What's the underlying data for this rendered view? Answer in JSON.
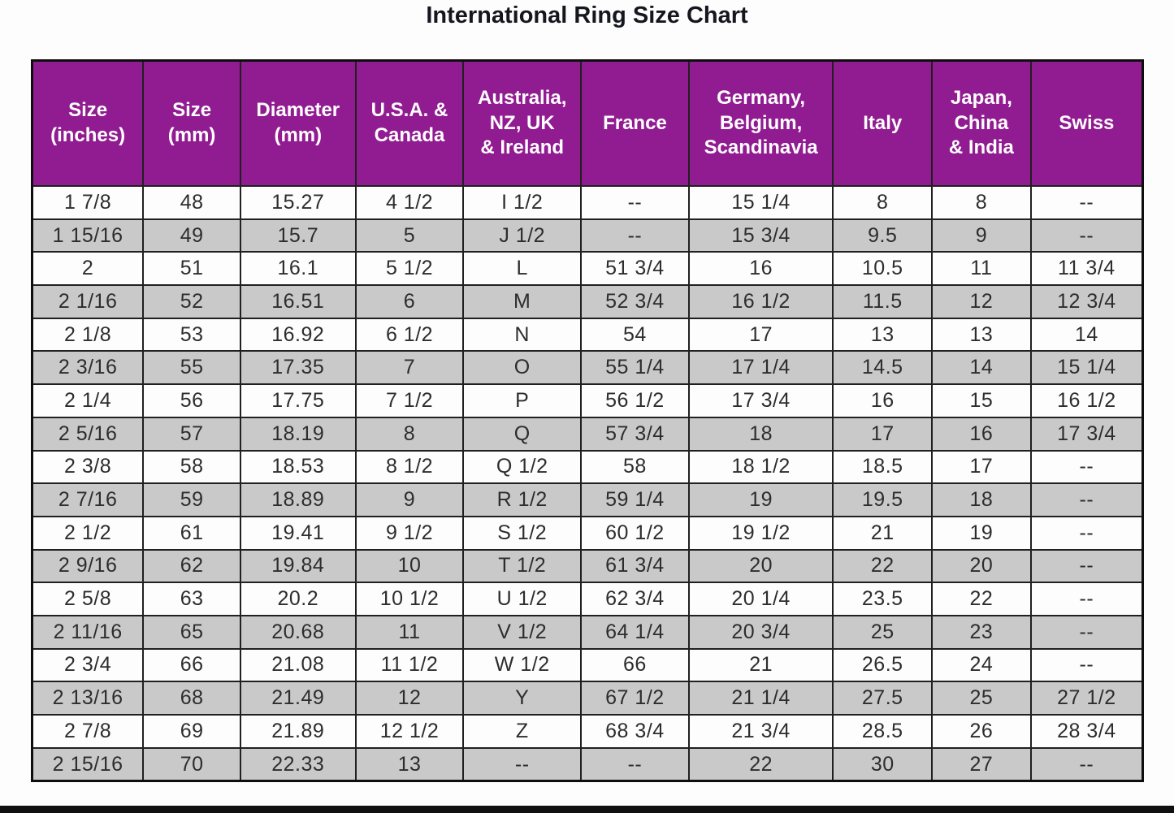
{
  "title": "International Ring Size Chart",
  "colors": {
    "header_bg": "#911b91",
    "header_text": "#ffffff",
    "row_bg": "#fdfdfd",
    "row_alt_bg": "#c9c9c9",
    "border": "#202020",
    "cell_text": "#2d2d2d",
    "bottom_bar": "#101010"
  },
  "chart_data": {
    "type": "table",
    "title": "International Ring Size Chart",
    "columns": [
      "Size\n(inches)",
      "Size\n(mm)",
      "Diameter\n(mm)",
      "U.S.A. &\nCanada",
      "Australia,\nNZ, UK\n& Ireland",
      "France",
      "Germany,\nBelgium,\nScandinavia",
      "Italy",
      "Japan,\nChina\n& India",
      "Swiss"
    ],
    "rows": [
      [
        "1 7/8",
        "48",
        "15.27",
        "4 1/2",
        "I 1/2",
        "--",
        "15 1/4",
        "8",
        "8",
        "--"
      ],
      [
        "1 15/16",
        "49",
        "15.7",
        "5",
        "J 1/2",
        "--",
        "15 3/4",
        "9.5",
        "9",
        "--"
      ],
      [
        "2",
        "51",
        "16.1",
        "5 1/2",
        "L",
        "51 3/4",
        "16",
        "10.5",
        "11",
        "11 3/4"
      ],
      [
        "2 1/16",
        "52",
        "16.51",
        "6",
        "M",
        "52 3/4",
        "16 1/2",
        "11.5",
        "12",
        "12 3/4"
      ],
      [
        "2 1/8",
        "53",
        "16.92",
        "6 1/2",
        "N",
        "54",
        "17",
        "13",
        "13",
        "14"
      ],
      [
        "2 3/16",
        "55",
        "17.35",
        "7",
        "O",
        "55 1/4",
        "17 1/4",
        "14.5",
        "14",
        "15 1/4"
      ],
      [
        "2 1/4",
        "56",
        "17.75",
        "7 1/2",
        "P",
        "56 1/2",
        "17 3/4",
        "16",
        "15",
        "16 1/2"
      ],
      [
        "2 5/16",
        "57",
        "18.19",
        "8",
        "Q",
        "57 3/4",
        "18",
        "17",
        "16",
        "17 3/4"
      ],
      [
        "2 3/8",
        "58",
        "18.53",
        "8 1/2",
        "Q 1/2",
        "58",
        "18 1/2",
        "18.5",
        "17",
        "--"
      ],
      [
        "2 7/16",
        "59",
        "18.89",
        "9",
        "R 1/2",
        "59 1/4",
        "19",
        "19.5",
        "18",
        "--"
      ],
      [
        "2 1/2",
        "61",
        "19.41",
        "9 1/2",
        "S 1/2",
        "60 1/2",
        "19 1/2",
        "21",
        "19",
        "--"
      ],
      [
        "2 9/16",
        "62",
        "19.84",
        "10",
        "T 1/2",
        "61 3/4",
        "20",
        "22",
        "20",
        "--"
      ],
      [
        "2 5/8",
        "63",
        "20.2",
        "10 1/2",
        "U 1/2",
        "62 3/4",
        "20 1/4",
        "23.5",
        "22",
        "--"
      ],
      [
        "2 11/16",
        "65",
        "20.68",
        "11",
        "V 1/2",
        "64 1/4",
        "20 3/4",
        "25",
        "23",
        "--"
      ],
      [
        "2 3/4",
        "66",
        "21.08",
        "11 1/2",
        "W 1/2",
        "66",
        "21",
        "26.5",
        "24",
        "--"
      ],
      [
        "2 13/16",
        "68",
        "21.49",
        "12",
        "Y",
        "67 1/2",
        "21 1/4",
        "27.5",
        "25",
        "27 1/2"
      ],
      [
        "2 7/8",
        "69",
        "21.89",
        "12 1/2",
        "Z",
        "68 3/4",
        "21 3/4",
        "28.5",
        "26",
        "28 3/4"
      ],
      [
        "2 15/16",
        "70",
        "22.33",
        "13",
        "--",
        "--",
        "22",
        "30",
        "27",
        "--"
      ]
    ],
    "layout": {
      "column_width_percents": [
        10.0,
        8.76,
        10.36,
        9.71,
        10.58,
        9.71,
        12.99,
        8.9,
        8.9,
        10.07
      ],
      "striping": "odd rows white, even rows gray",
      "header_rows": 1
    }
  }
}
